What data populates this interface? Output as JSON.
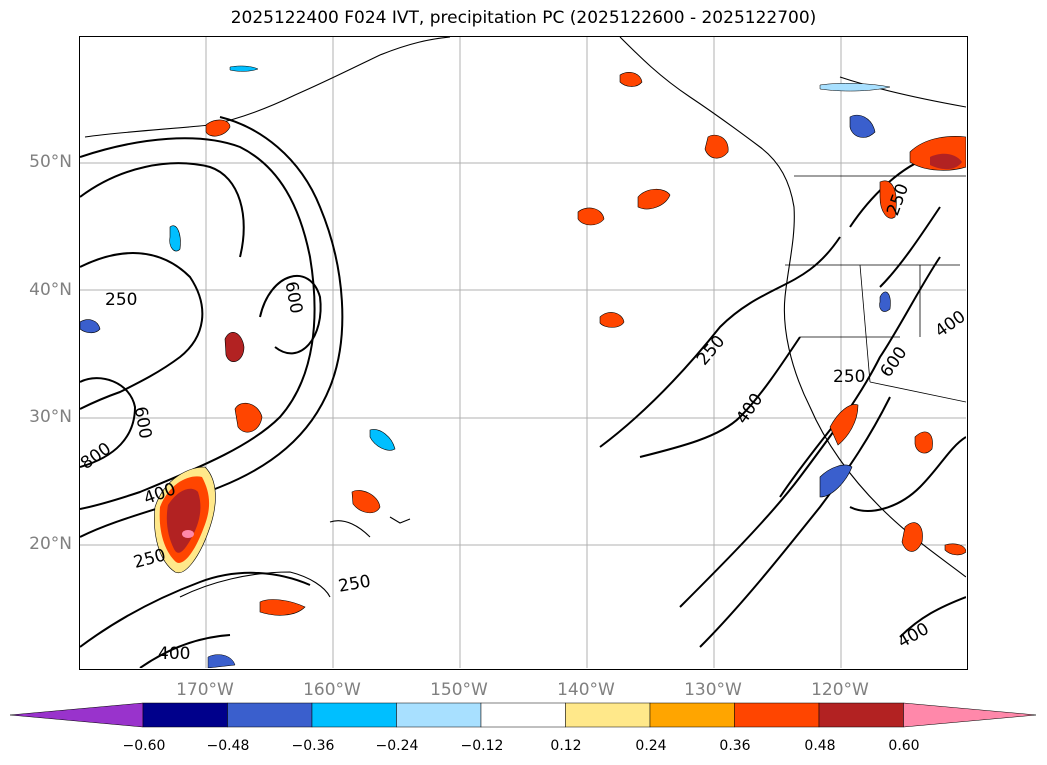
{
  "title": "2025122400 F024 IVT, precipitation PC (2025122600 - 2025122700)",
  "lat_labels": [
    "50°N",
    "40°N",
    "30°N",
    "20°N"
  ],
  "lon_labels": [
    "170°W",
    "160°W",
    "150°W",
    "140°W",
    "130°W",
    "120°W"
  ],
  "contour_labels": [
    "250",
    "600",
    "600",
    "800",
    "400",
    "250",
    "250",
    "400",
    "250",
    "400",
    "600",
    "250",
    "400",
    "400",
    "250"
  ],
  "colorbar": {
    "ticks": [
      "−0.60",
      "−0.48",
      "−0.36",
      "−0.24",
      "−0.12",
      "0.12",
      "0.24",
      "0.36",
      "0.48",
      "0.60"
    ],
    "colors": [
      "#9933cc",
      "#00008b",
      "#3a5fcd",
      "#00bfff",
      "#a8e0ff",
      "#ffffff",
      "#ffe88a",
      "#ffa500",
      "#ff4500",
      "#b22222",
      "#ff88aa"
    ]
  }
}
